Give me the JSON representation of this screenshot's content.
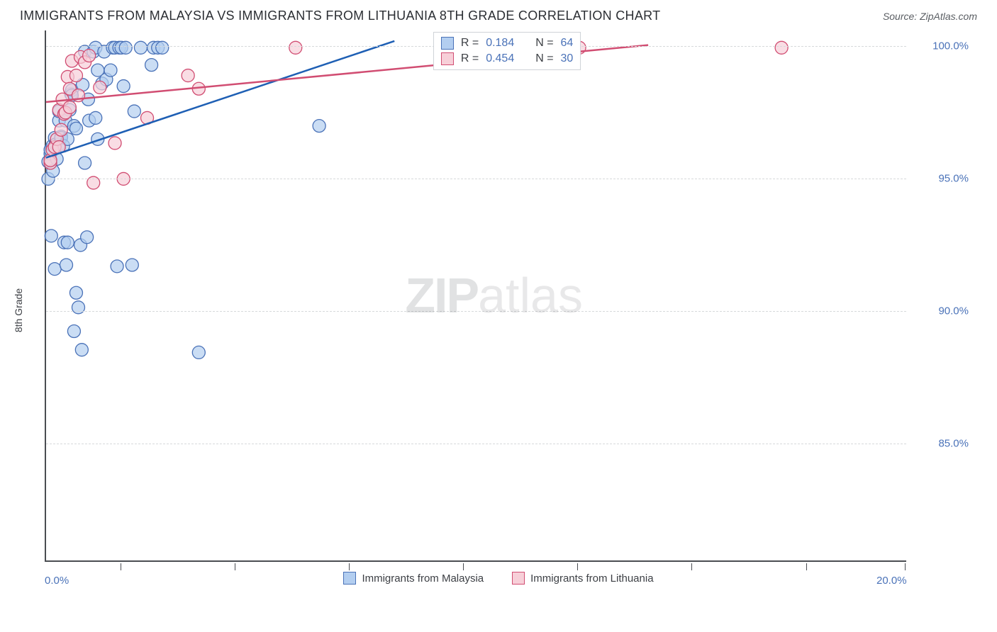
{
  "title": "IMMIGRANTS FROM MALAYSIA VS IMMIGRANTS FROM LITHUANIA 8TH GRADE CORRELATION CHART",
  "source": "Source: ZipAtlas.com",
  "ylabel": "8th Grade",
  "watermark_a": "ZIP",
  "watermark_b": "atlas",
  "chart": {
    "type": "scatter",
    "xlim": [
      0,
      20
    ],
    "ylim": [
      80.6,
      100.6
    ],
    "ytick_labels": [
      "85.0%",
      "90.0%",
      "95.0%",
      "100.0%"
    ],
    "ytick_values": [
      85,
      90,
      95,
      100
    ],
    "xtick_positions": [
      0,
      1.77,
      4.42,
      7.08,
      9.73,
      12.39,
      15.04,
      17.7,
      20
    ],
    "xtick_label_0": "0.0%",
    "xtick_label_20": "20.0%",
    "grid_color": "#d7d9db",
    "axis_color": "#4a4d52",
    "background_color": "#ffffff",
    "series": [
      {
        "name": "Immigrants from Malaysia",
        "fill": "#b3cef0",
        "stroke": "#4a72b8",
        "line_color": "#1e5fb4",
        "marker_radius": 9,
        "marker_opacity": 0.7,
        "R": "0.184",
        "N": "64",
        "regression": {
          "x1": 0,
          "y1": 95.8,
          "x2": 8.1,
          "y2": 100.2
        },
        "points": [
          [
            0.05,
            95.0
          ],
          [
            0.05,
            95.65
          ],
          [
            0.1,
            95.95
          ],
          [
            0.1,
            96.1
          ],
          [
            0.12,
            92.85
          ],
          [
            0.15,
            96.25
          ],
          [
            0.16,
            95.3
          ],
          [
            0.2,
            91.6
          ],
          [
            0.2,
            96.55
          ],
          [
            0.22,
            96.3
          ],
          [
            0.25,
            95.75
          ],
          [
            0.3,
            96.3
          ],
          [
            0.3,
            97.2
          ],
          [
            0.3,
            97.55
          ],
          [
            0.35,
            96.6
          ],
          [
            0.35,
            96.55
          ],
          [
            0.4,
            96.25
          ],
          [
            0.42,
            92.6
          ],
          [
            0.45,
            97.2
          ],
          [
            0.47,
            91.75
          ],
          [
            0.5,
            92.6
          ],
          [
            0.5,
            96.5
          ],
          [
            0.55,
            97.6
          ],
          [
            0.58,
            98.2
          ],
          [
            0.6,
            98.35
          ],
          [
            0.6,
            98.15
          ],
          [
            0.65,
            89.25
          ],
          [
            0.65,
            97.0
          ],
          [
            0.7,
            90.7
          ],
          [
            0.7,
            96.9
          ],
          [
            0.75,
            90.15
          ],
          [
            0.8,
            92.5
          ],
          [
            0.83,
            88.55
          ],
          [
            0.85,
            98.55
          ],
          [
            0.9,
            95.6
          ],
          [
            0.9,
            99.8
          ],
          [
            0.95,
            92.8
          ],
          [
            0.98,
            98.0
          ],
          [
            1.0,
            97.2
          ],
          [
            1.1,
            99.8
          ],
          [
            1.15,
            99.95
          ],
          [
            1.15,
            97.3
          ],
          [
            1.2,
            99.1
          ],
          [
            1.2,
            96.5
          ],
          [
            1.3,
            98.6
          ],
          [
            1.35,
            99.8
          ],
          [
            1.4,
            98.75
          ],
          [
            1.5,
            99.1
          ],
          [
            1.55,
            99.95
          ],
          [
            1.6,
            99.95
          ],
          [
            1.65,
            91.7
          ],
          [
            1.7,
            99.95
          ],
          [
            1.75,
            99.95
          ],
          [
            1.8,
            98.5
          ],
          [
            1.85,
            99.95
          ],
          [
            2.0,
            91.75
          ],
          [
            2.05,
            97.55
          ],
          [
            2.2,
            99.95
          ],
          [
            2.45,
            99.3
          ],
          [
            2.5,
            99.95
          ],
          [
            2.6,
            99.95
          ],
          [
            2.7,
            99.95
          ],
          [
            3.55,
            88.45
          ],
          [
            6.35,
            97.0
          ]
        ]
      },
      {
        "name": "Immigrants from Lithuania",
        "fill": "#f7cfd8",
        "stroke": "#d14d72",
        "line_color": "#d14d72",
        "marker_radius": 9,
        "marker_opacity": 0.7,
        "R": "0.454",
        "N": "30",
        "regression": {
          "x1": 0,
          "y1": 97.9,
          "x2": 14.0,
          "y2": 100.05
        },
        "points": [
          [
            0.1,
            95.6
          ],
          [
            0.1,
            95.7
          ],
          [
            0.15,
            96.1
          ],
          [
            0.2,
            96.2
          ],
          [
            0.25,
            96.5
          ],
          [
            0.3,
            96.2
          ],
          [
            0.3,
            97.6
          ],
          [
            0.35,
            96.85
          ],
          [
            0.38,
            98.0
          ],
          [
            0.42,
            97.45
          ],
          [
            0.45,
            97.5
          ],
          [
            0.5,
            98.85
          ],
          [
            0.55,
            98.4
          ],
          [
            0.55,
            97.7
          ],
          [
            0.6,
            99.45
          ],
          [
            0.7,
            98.9
          ],
          [
            0.75,
            98.15
          ],
          [
            0.8,
            99.6
          ],
          [
            0.9,
            99.4
          ],
          [
            1.0,
            99.65
          ],
          [
            1.1,
            94.85
          ],
          [
            1.25,
            98.45
          ],
          [
            1.6,
            96.35
          ],
          [
            1.8,
            95.0
          ],
          [
            2.35,
            97.3
          ],
          [
            3.3,
            98.9
          ],
          [
            3.55,
            98.4
          ],
          [
            5.8,
            99.95
          ],
          [
            12.4,
            99.95
          ],
          [
            17.1,
            99.95
          ]
        ]
      }
    ],
    "legend_top": {
      "R_label": "R  =",
      "N_label": "N  ="
    }
  },
  "legend_bottom": {
    "series1": "Immigrants from Malaysia",
    "series2": "Immigrants from Lithuania"
  }
}
